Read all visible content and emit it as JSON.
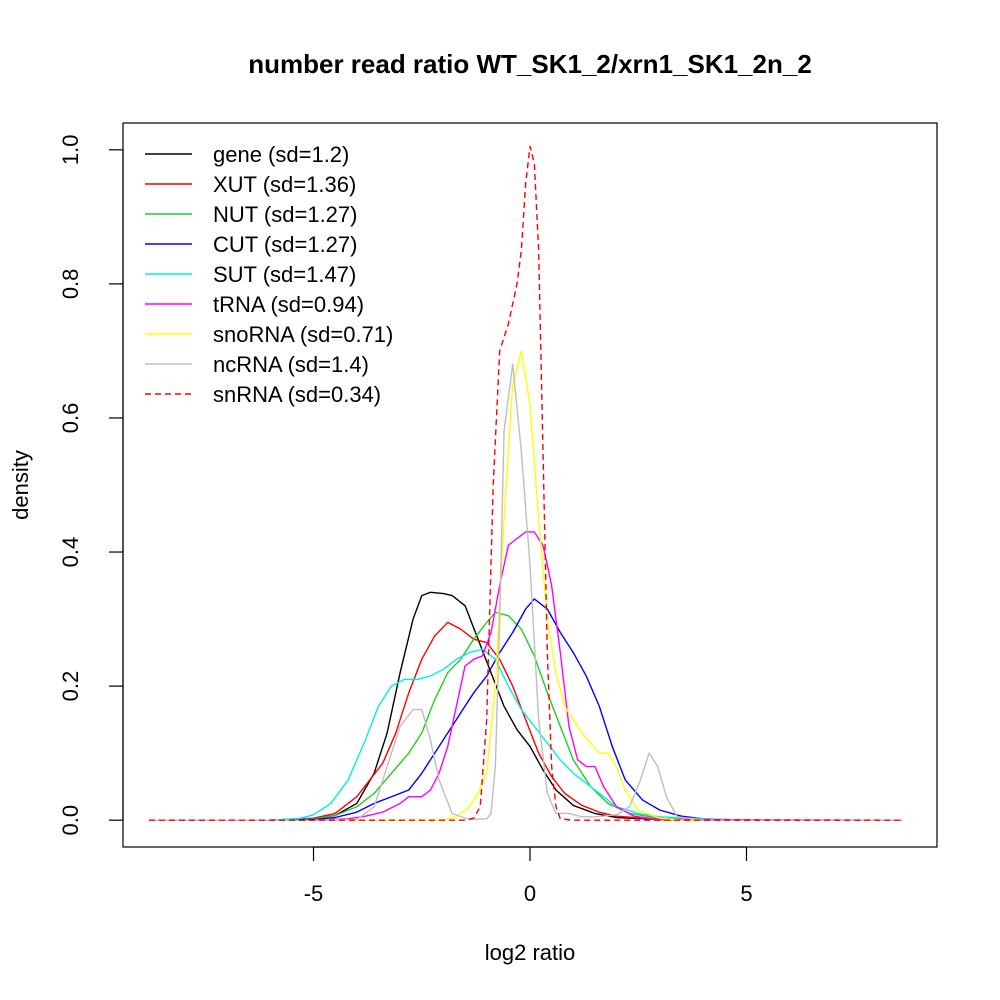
{
  "chart_data": {
    "type": "line",
    "title": "number read ratio WT_SK1_2/xrn1_SK1_2n_2",
    "xlabel": "log2 ratio",
    "ylabel": "density",
    "xlim": [
      -9.4,
      9.4
    ],
    "ylim": [
      -0.04,
      1.04
    ],
    "xticks": [
      -5,
      0,
      5
    ],
    "xtick_labels": [
      "-5",
      "0",
      "5"
    ],
    "yticks": [
      0.0,
      0.2,
      0.4,
      0.6,
      0.8,
      1.0
    ],
    "ytick_labels": [
      "0.0",
      "0.2",
      "0.4",
      "0.6",
      "0.8",
      "1.0"
    ],
    "grid": false,
    "legend_position": "top-left",
    "series": [
      {
        "name": "gene (sd=1.2)",
        "color": "#000000",
        "dash": "solid",
        "points": [
          [
            -8.8,
            0
          ],
          [
            -6,
            0
          ],
          [
            -5,
            0.002
          ],
          [
            -4.5,
            0.007
          ],
          [
            -4,
            0.025
          ],
          [
            -3.6,
            0.07
          ],
          [
            -3.3,
            0.13
          ],
          [
            -3.0,
            0.22
          ],
          [
            -2.7,
            0.3
          ],
          [
            -2.5,
            0.335
          ],
          [
            -2.3,
            0.34
          ],
          [
            -2.0,
            0.338
          ],
          [
            -1.8,
            0.335
          ],
          [
            -1.5,
            0.32
          ],
          [
            -1.2,
            0.27
          ],
          [
            -0.9,
            0.22
          ],
          [
            -0.6,
            0.17
          ],
          [
            -0.3,
            0.135
          ],
          [
            0,
            0.11
          ],
          [
            0.3,
            0.075
          ],
          [
            0.6,
            0.045
          ],
          [
            1.0,
            0.022
          ],
          [
            1.5,
            0.01
          ],
          [
            2,
            0.004
          ],
          [
            3,
            0.001
          ],
          [
            4,
            0
          ],
          [
            8.6,
            0
          ]
        ]
      },
      {
        "name": "XUT (sd=1.36)",
        "color": "#ff0000",
        "dash": "solid",
        "points": [
          [
            -8.8,
            0
          ],
          [
            -6,
            0
          ],
          [
            -5,
            0.003
          ],
          [
            -4.5,
            0.01
          ],
          [
            -4,
            0.035
          ],
          [
            -3.7,
            0.06
          ],
          [
            -3.4,
            0.085
          ],
          [
            -3.1,
            0.13
          ],
          [
            -2.8,
            0.19
          ],
          [
            -2.5,
            0.24
          ],
          [
            -2.2,
            0.275
          ],
          [
            -1.9,
            0.295
          ],
          [
            -1.6,
            0.285
          ],
          [
            -1.3,
            0.27
          ],
          [
            -1.0,
            0.265
          ],
          [
            -0.7,
            0.24
          ],
          [
            -0.4,
            0.2
          ],
          [
            -0.1,
            0.15
          ],
          [
            0.2,
            0.1
          ],
          [
            0.5,
            0.065
          ],
          [
            0.8,
            0.04
          ],
          [
            1.2,
            0.022
          ],
          [
            1.6,
            0.012
          ],
          [
            2,
            0.006
          ],
          [
            3,
            0.001
          ],
          [
            4,
            0
          ],
          [
            8.6,
            0
          ]
        ]
      },
      {
        "name": "NUT (sd=1.27)",
        "color": "#22cc22",
        "dash": "solid",
        "points": [
          [
            -8.8,
            0
          ],
          [
            -6,
            0
          ],
          [
            -5,
            0.002
          ],
          [
            -4.5,
            0.007
          ],
          [
            -4,
            0.02
          ],
          [
            -3.6,
            0.04
          ],
          [
            -3.2,
            0.07
          ],
          [
            -2.8,
            0.1
          ],
          [
            -2.5,
            0.13
          ],
          [
            -2.2,
            0.18
          ],
          [
            -1.9,
            0.22
          ],
          [
            -1.6,
            0.24
          ],
          [
            -1.3,
            0.27
          ],
          [
            -1.0,
            0.295
          ],
          [
            -0.8,
            0.31
          ],
          [
            -0.5,
            0.305
          ],
          [
            -0.2,
            0.285
          ],
          [
            0.1,
            0.245
          ],
          [
            0.4,
            0.19
          ],
          [
            0.7,
            0.14
          ],
          [
            1.0,
            0.09
          ],
          [
            1.4,
            0.05
          ],
          [
            1.8,
            0.025
          ],
          [
            2.3,
            0.01
          ],
          [
            3,
            0.003
          ],
          [
            4,
            0
          ],
          [
            8.6,
            0
          ]
        ]
      },
      {
        "name": "CUT (sd=1.27)",
        "color": "#0000ff",
        "dash": "solid",
        "points": [
          [
            -8.8,
            0
          ],
          [
            -6,
            0
          ],
          [
            -5,
            0.001
          ],
          [
            -4.5,
            0.004
          ],
          [
            -4,
            0.012
          ],
          [
            -3.6,
            0.025
          ],
          [
            -3.2,
            0.035
          ],
          [
            -2.8,
            0.045
          ],
          [
            -2.5,
            0.07
          ],
          [
            -2.2,
            0.1
          ],
          [
            -1.9,
            0.13
          ],
          [
            -1.6,
            0.16
          ],
          [
            -1.3,
            0.19
          ],
          [
            -1.0,
            0.215
          ],
          [
            -0.7,
            0.25
          ],
          [
            -0.4,
            0.28
          ],
          [
            -0.1,
            0.315
          ],
          [
            0.1,
            0.33
          ],
          [
            0.4,
            0.315
          ],
          [
            0.7,
            0.28
          ],
          [
            1.0,
            0.25
          ],
          [
            1.3,
            0.215
          ],
          [
            1.6,
            0.17
          ],
          [
            1.9,
            0.11
          ],
          [
            2.2,
            0.06
          ],
          [
            2.6,
            0.03
          ],
          [
            3,
            0.015
          ],
          [
            3.5,
            0.006
          ],
          [
            4,
            0.002
          ],
          [
            5,
            0
          ],
          [
            8.6,
            0
          ]
        ]
      },
      {
        "name": "SUT (sd=1.47)",
        "color": "#00eeee",
        "dash": "solid",
        "points": [
          [
            -8.8,
            0
          ],
          [
            -6,
            0
          ],
          [
            -5.3,
            0.003
          ],
          [
            -5,
            0.008
          ],
          [
            -4.6,
            0.025
          ],
          [
            -4.2,
            0.06
          ],
          [
            -3.8,
            0.12
          ],
          [
            -3.5,
            0.17
          ],
          [
            -3.2,
            0.2
          ],
          [
            -2.9,
            0.21
          ],
          [
            -2.6,
            0.21
          ],
          [
            -2.3,
            0.215
          ],
          [
            -2.0,
            0.225
          ],
          [
            -1.7,
            0.24
          ],
          [
            -1.4,
            0.25
          ],
          [
            -1.1,
            0.255
          ],
          [
            -0.8,
            0.24
          ],
          [
            -0.5,
            0.2
          ],
          [
            -0.2,
            0.165
          ],
          [
            0.1,
            0.14
          ],
          [
            0.4,
            0.115
          ],
          [
            0.7,
            0.09
          ],
          [
            1.0,
            0.07
          ],
          [
            1.3,
            0.055
          ],
          [
            1.6,
            0.04
          ],
          [
            2.0,
            0.02
          ],
          [
            2.5,
            0.01
          ],
          [
            3,
            0.005
          ],
          [
            4,
            0.002
          ],
          [
            5,
            0
          ],
          [
            8.6,
            0
          ]
        ]
      },
      {
        "name": "tRNA (sd=0.94)",
        "color": "#ff00ff",
        "dash": "solid",
        "points": [
          [
            -8.8,
            0
          ],
          [
            -6,
            0
          ],
          [
            -5,
            0
          ],
          [
            -4.2,
            0.002
          ],
          [
            -3.8,
            0.006
          ],
          [
            -3.4,
            0.012
          ],
          [
            -3.0,
            0.025
          ],
          [
            -2.8,
            0.035
          ],
          [
            -2.5,
            0.035
          ],
          [
            -2.3,
            0.045
          ],
          [
            -2.1,
            0.07
          ],
          [
            -1.9,
            0.11
          ],
          [
            -1.7,
            0.17
          ],
          [
            -1.5,
            0.23
          ],
          [
            -1.3,
            0.24
          ],
          [
            -1.1,
            0.245
          ],
          [
            -0.9,
            0.28
          ],
          [
            -0.7,
            0.35
          ],
          [
            -0.5,
            0.41
          ],
          [
            -0.3,
            0.42
          ],
          [
            -0.1,
            0.43
          ],
          [
            0.1,
            0.43
          ],
          [
            0.3,
            0.41
          ],
          [
            0.5,
            0.35
          ],
          [
            0.7,
            0.25
          ],
          [
            0.9,
            0.14
          ],
          [
            1.1,
            0.09
          ],
          [
            1.3,
            0.08
          ],
          [
            1.5,
            0.08
          ],
          [
            1.7,
            0.05
          ],
          [
            2.0,
            0.02
          ],
          [
            2.4,
            0.006
          ],
          [
            3,
            0.001
          ],
          [
            8.6,
            0
          ]
        ]
      },
      {
        "name": "snoRNA (sd=0.71)",
        "color": "#ffff00",
        "dash": "solid",
        "points": [
          [
            -8.8,
            0
          ],
          [
            -5,
            0
          ],
          [
            -2,
            0
          ],
          [
            -1.7,
            0.005
          ],
          [
            -1.4,
            0.02
          ],
          [
            -1.2,
            0.04
          ],
          [
            -1.0,
            0.07
          ],
          [
            -0.8,
            0.2
          ],
          [
            -0.6,
            0.45
          ],
          [
            -0.4,
            0.65
          ],
          [
            -0.2,
            0.7
          ],
          [
            0,
            0.62
          ],
          [
            0.2,
            0.45
          ],
          [
            0.4,
            0.3
          ],
          [
            0.6,
            0.22
          ],
          [
            0.8,
            0.17
          ],
          [
            1.0,
            0.15
          ],
          [
            1.2,
            0.13
          ],
          [
            1.4,
            0.115
          ],
          [
            1.6,
            0.1
          ],
          [
            1.8,
            0.1
          ],
          [
            2.0,
            0.08
          ],
          [
            2.2,
            0.045
          ],
          [
            2.5,
            0.015
          ],
          [
            3,
            0.003
          ],
          [
            3.5,
            0
          ],
          [
            8.6,
            0
          ]
        ]
      },
      {
        "name": "ncRNA (sd=1.4)",
        "color": "#bebebe",
        "dash": "solid",
        "points": [
          [
            -8.8,
            0
          ],
          [
            -5,
            0
          ],
          [
            -4,
            0.001
          ],
          [
            -3.6,
            0.02
          ],
          [
            -3.3,
            0.08
          ],
          [
            -3.0,
            0.14
          ],
          [
            -2.7,
            0.165
          ],
          [
            -2.5,
            0.165
          ],
          [
            -2.3,
            0.12
          ],
          [
            -2.1,
            0.06
          ],
          [
            -1.8,
            0.01
          ],
          [
            -1.4,
            0.001
          ],
          [
            -1.0,
            0.002
          ],
          [
            -0.9,
            0.01
          ],
          [
            -0.8,
            0.08
          ],
          [
            -0.7,
            0.3
          ],
          [
            -0.6,
            0.58
          ],
          [
            -0.4,
            0.68
          ],
          [
            -0.2,
            0.55
          ],
          [
            0,
            0.38
          ],
          [
            0.2,
            0.15
          ],
          [
            0.4,
            0.04
          ],
          [
            0.6,
            0.01
          ],
          [
            0.9,
            0.01
          ],
          [
            1.2,
            0.005
          ],
          [
            1.5,
            0.005
          ],
          [
            2.0,
            0.008
          ],
          [
            2.3,
            0.02
          ],
          [
            2.55,
            0.06
          ],
          [
            2.75,
            0.1
          ],
          [
            2.95,
            0.08
          ],
          [
            3.15,
            0.035
          ],
          [
            3.4,
            0.005
          ],
          [
            4,
            0
          ],
          [
            8.6,
            0
          ]
        ]
      },
      {
        "name": "snRNA (sd=0.34)",
        "color": "#ff0000",
        "dash": "dashed",
        "points": [
          [
            -8.8,
            0
          ],
          [
            -5,
            0
          ],
          [
            -1.5,
            0
          ],
          [
            -1.3,
            0.003
          ],
          [
            -1.15,
            0.02
          ],
          [
            -1.0,
            0.15
          ],
          [
            -0.85,
            0.5
          ],
          [
            -0.7,
            0.7
          ],
          [
            -0.5,
            0.74
          ],
          [
            -0.3,
            0.8
          ],
          [
            -0.2,
            0.85
          ],
          [
            -0.1,
            0.95
          ],
          [
            0,
            1.005
          ],
          [
            0.1,
            0.98
          ],
          [
            0.2,
            0.85
          ],
          [
            0.3,
            0.55
          ],
          [
            0.4,
            0.25
          ],
          [
            0.5,
            0.08
          ],
          [
            0.6,
            0.02
          ],
          [
            0.7,
            0.002
          ],
          [
            1.0,
            0
          ],
          [
            8.6,
            0
          ]
        ]
      }
    ]
  }
}
